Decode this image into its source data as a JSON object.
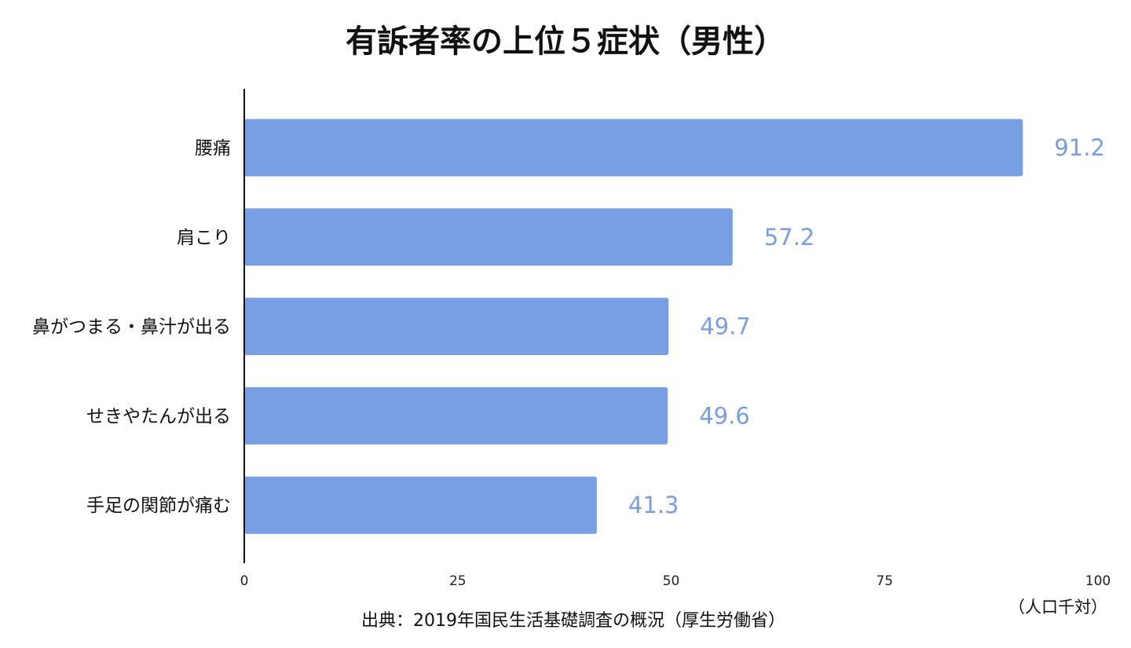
{
  "chart_data": {
    "type": "bar",
    "orientation": "horizontal",
    "title": "有訴者率の上位５症状（男性）",
    "categories": [
      "腰痛",
      "肩こり",
      "鼻がつまる・鼻汁が出る",
      "せきやたんが出る",
      "手足の関節が痛む"
    ],
    "values": [
      91.2,
      57.2,
      49.7,
      49.6,
      41.3
    ],
    "value_labels": [
      "91.2",
      "57.2",
      "49.7",
      "49.6",
      "41.3"
    ],
    "xlim": [
      0,
      100
    ],
    "x_ticks": [
      "0",
      "25",
      "50",
      "75",
      "100"
    ],
    "x_tick_values": [
      0,
      25,
      50,
      75,
      100
    ],
    "unit_label": "（人口千対）",
    "source": "出典：2019年国民生活基礎調査の概況（厚生労働省）",
    "grid": false,
    "legend": "none",
    "colors": {
      "bar": "#789ee3",
      "value_label": "#789ee3",
      "axis": "#111111"
    }
  }
}
